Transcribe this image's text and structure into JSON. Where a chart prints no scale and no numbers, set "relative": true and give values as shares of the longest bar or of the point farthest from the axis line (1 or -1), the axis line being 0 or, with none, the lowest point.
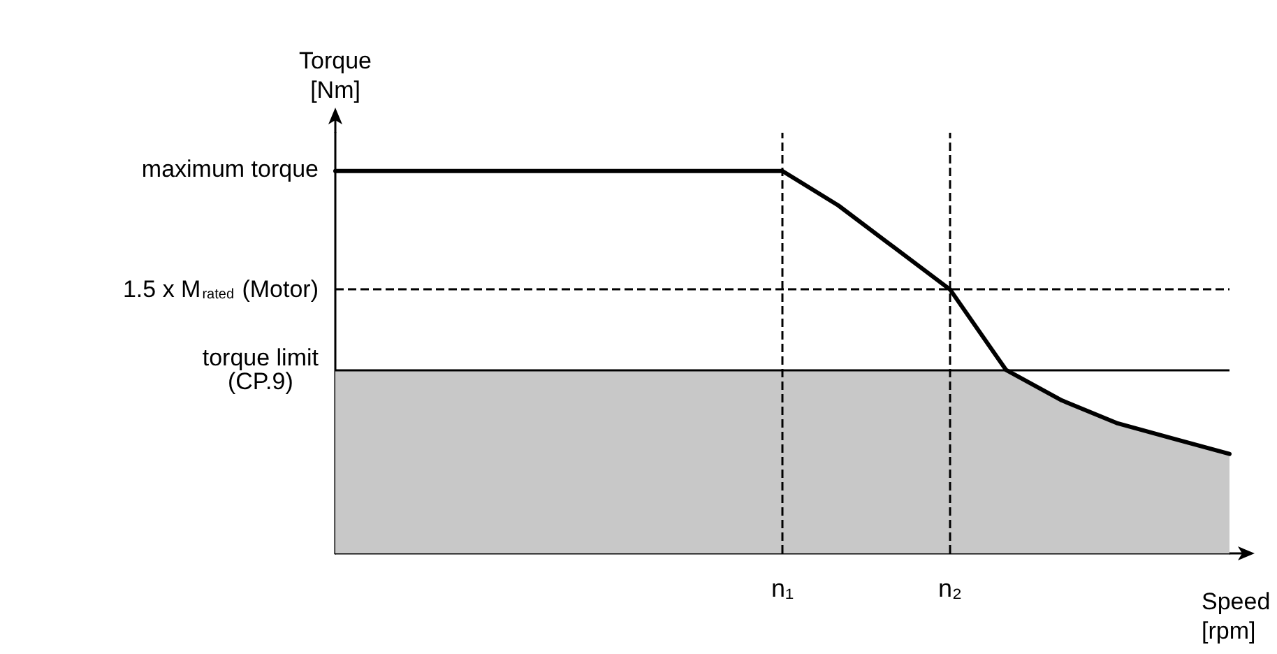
{
  "chart_data": {
    "type": "line",
    "relative": true,
    "ylabel": "Torque\n[Nm]",
    "xlabel": "Speed\n[rpm]",
    "categories": [
      null,
      null,
      null,
      null,
      null,
      null,
      null,
      null,
      "n₁",
      null,
      null,
      "n₂",
      null,
      null,
      null,
      null,
      null
    ],
    "series": [
      {
        "type": "area",
        "color": "#c8c8c8",
        "values": [
          0.48,
          0.48,
          0.48,
          0.48,
          0.48,
          0.48,
          0.48,
          0.48,
          0.48,
          0.48,
          0.48,
          0.48,
          0.48,
          0.4,
          0.34,
          0.3,
          0.26
        ]
      },
      {
        "color": "#000000",
        "values": [
          1,
          1,
          1,
          1,
          1,
          1,
          1,
          1,
          1,
          0.91,
          0.8,
          0.69,
          0.48,
          0.4,
          0.34,
          0.3,
          0.26
        ]
      }
    ],
    "ref_lines": [
      {
        "axis": "x",
        "value": "n₁",
        "line_style": "dashed"
      },
      {
        "axis": "x",
        "value": "n₂",
        "line_style": "dashed"
      },
      {
        "axis": "y",
        "value": 0.69,
        "label": "1.5 x M$_{rated}$ (Motor)",
        "line_style": "dashed"
      },
      {
        "axis": "y",
        "value": 0.48,
        "label": "torque limit\n(CP.9)",
        "line_style": "solid"
      }
    ],
    "annotations": [
      "maximum torque"
    ],
    "marker": "none",
    "line_style": "solid",
    "grid": false
  }
}
